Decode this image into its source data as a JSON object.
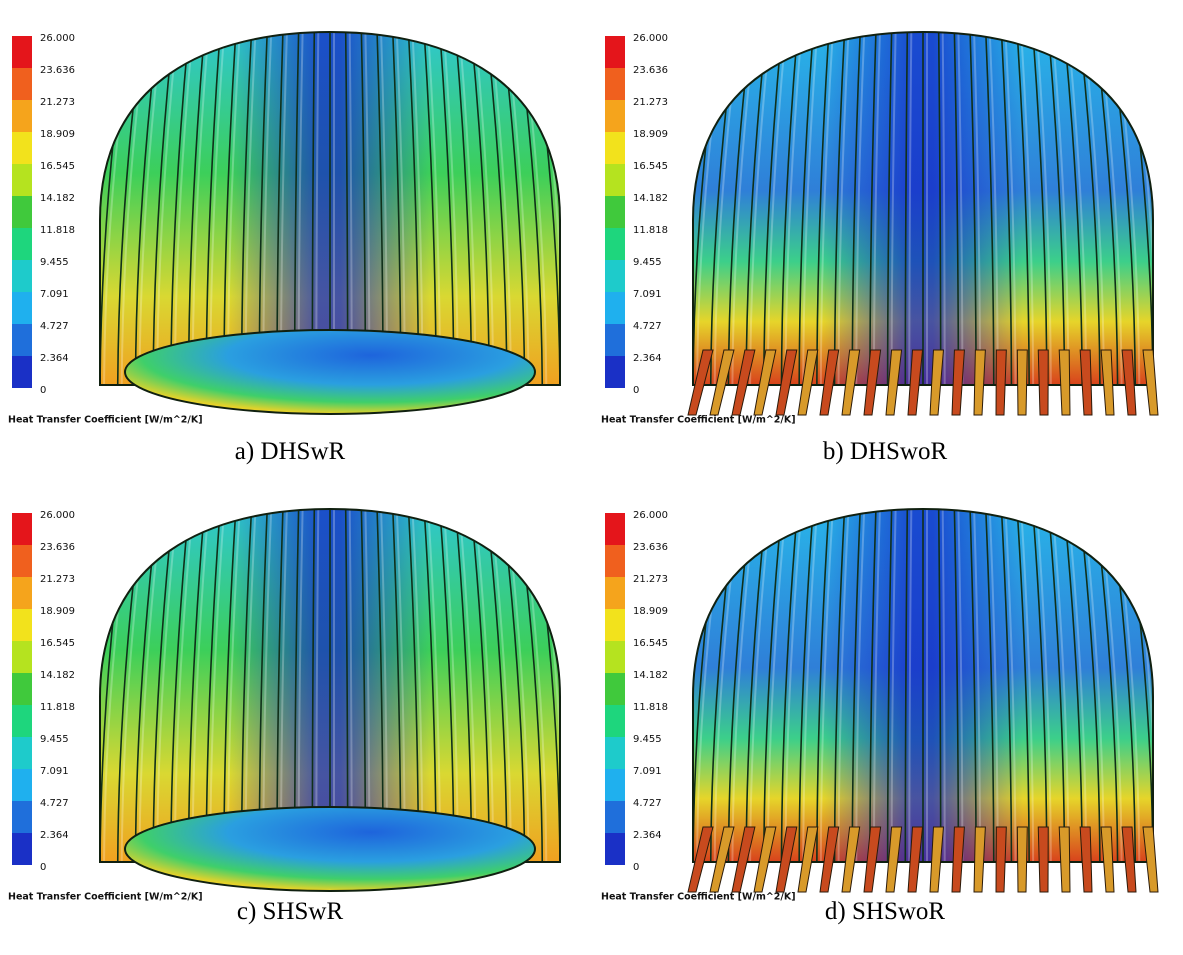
{
  "panels": [
    {
      "caption": "a) DHSwR",
      "legend": {
        "title": "Heat Transfer Coefficient [W/m^2/K]",
        "labels": [
          "26.000",
          "23.636",
          "21.273",
          "18.909",
          "16.545",
          "14.182",
          "11.818",
          "9.455",
          "7.091",
          "4.727",
          "2.364",
          "0"
        ]
      }
    },
    {
      "caption": "b) DHSwoR",
      "legend": {
        "title": "Heat Transfer Coefficient [W/m^2/K]",
        "labels": [
          "26.000",
          "23.636",
          "21.273",
          "18.909",
          "16.545",
          "14.182",
          "11.818",
          "9.455",
          "7.091",
          "4.727",
          "2.364",
          "0"
        ]
      }
    },
    {
      "caption": "c) SHSwR",
      "legend": {
        "title": "Heat Transfer Coefficient [W/m^2/K]",
        "labels": [
          "26.000",
          "23.636",
          "21.273",
          "18.909",
          "16.545",
          "14.182",
          "11.818",
          "9.455",
          "7.091",
          "4.727",
          "2.364",
          "0"
        ]
      }
    },
    {
      "caption": "d) SHSwoR",
      "legend": {
        "title": "Heat Transfer Coefficient [W/m^2/K]",
        "labels": [
          "26.000",
          "23.636",
          "21.273",
          "18.909",
          "16.545",
          "14.182",
          "11.818",
          "9.455",
          "7.091",
          "4.727",
          "2.364",
          "0"
        ]
      }
    }
  ]
}
